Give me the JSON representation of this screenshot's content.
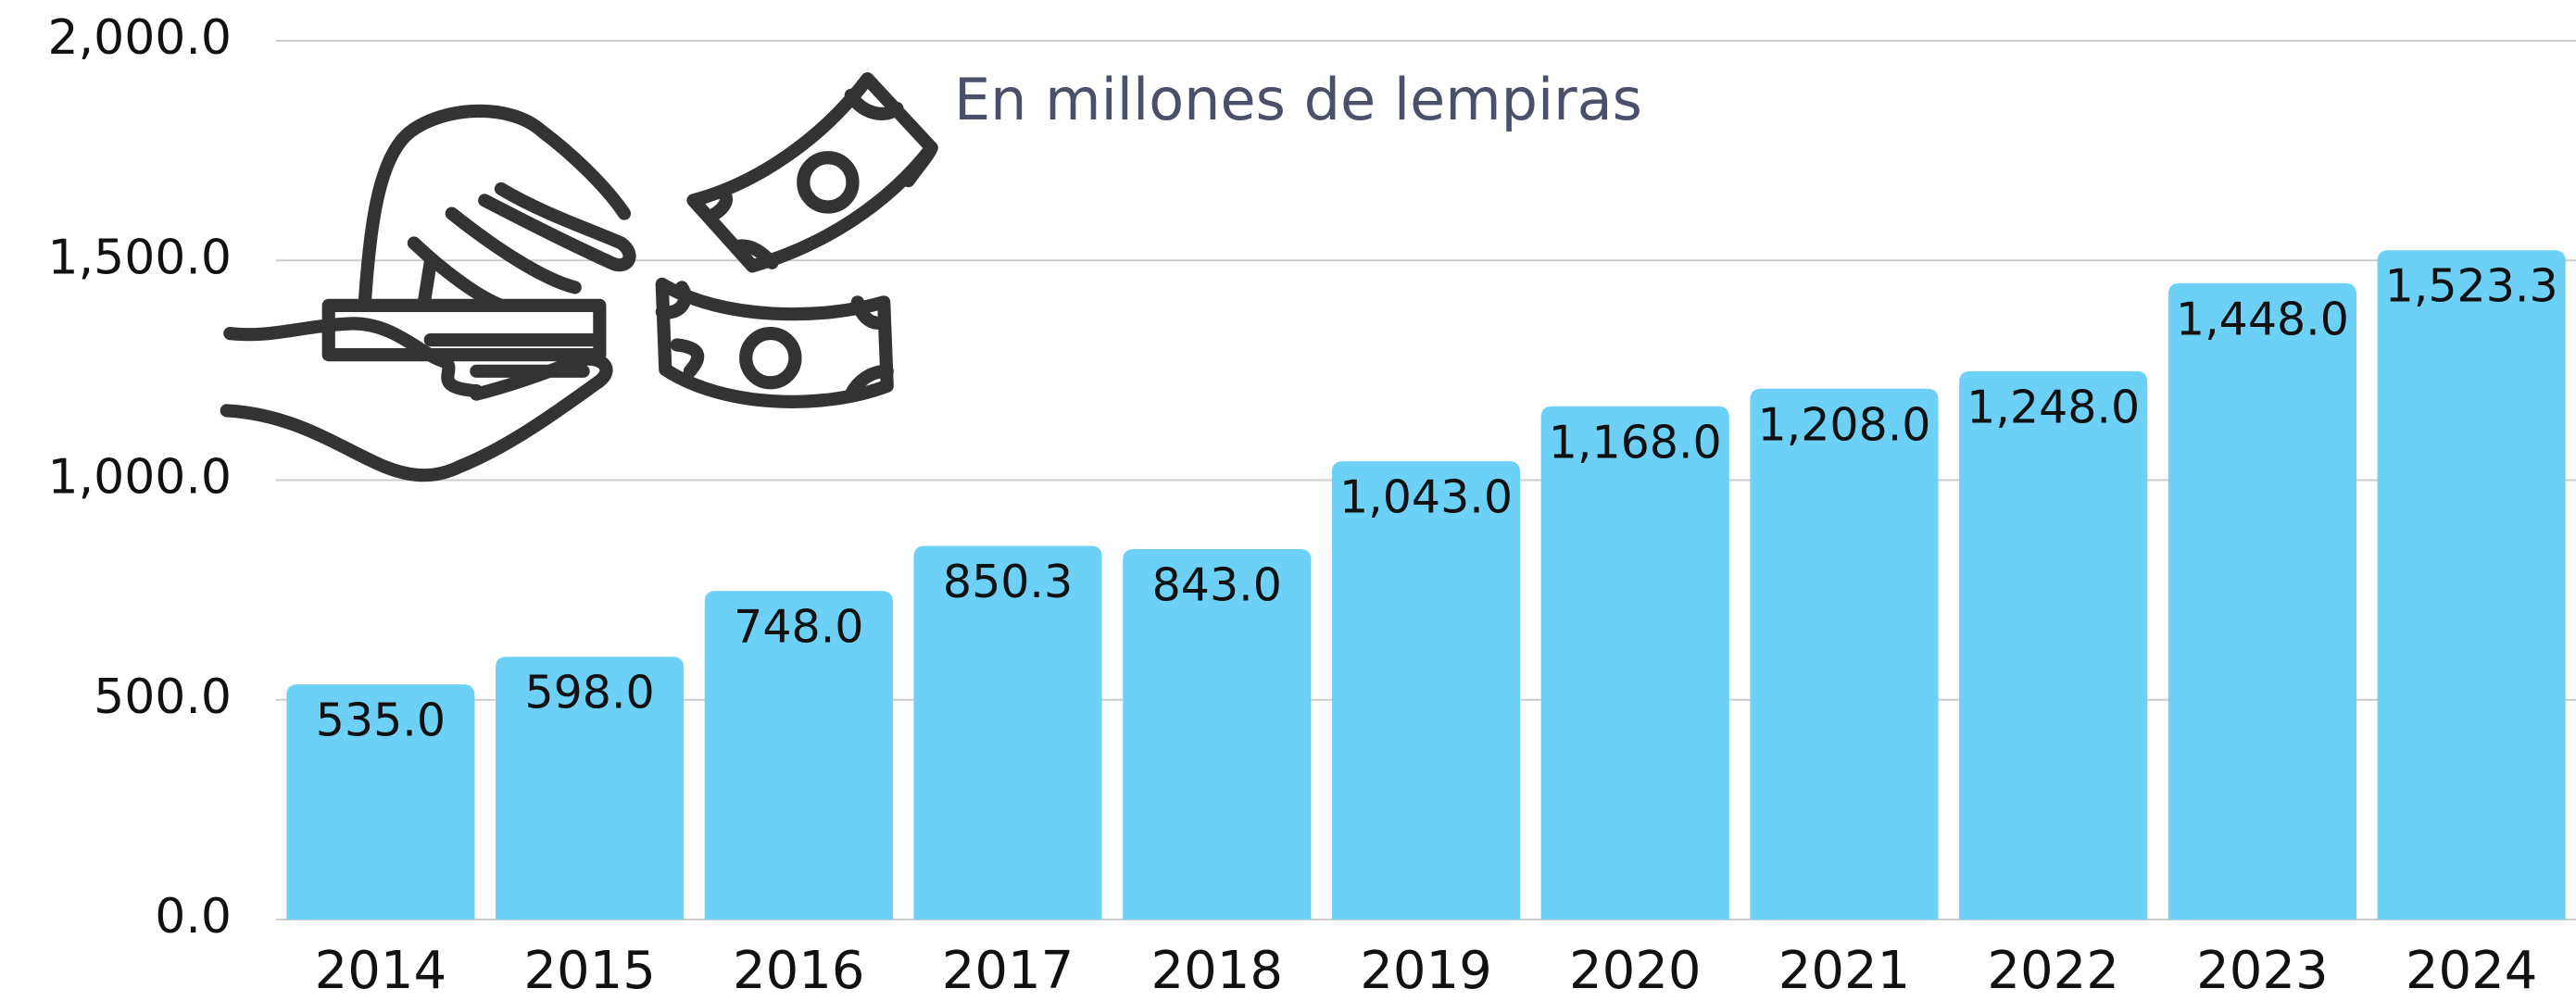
{
  "chart_data": {
    "type": "bar",
    "subtitle": "En millones de lempiras",
    "categories": [
      "2014",
      "2015",
      "2016",
      "2017",
      "2018",
      "2019",
      "2020",
      "2021",
      "2022",
      "2023",
      "2024"
    ],
    "values": [
      535.0,
      598.0,
      748.0,
      850.3,
      843.0,
      1043.0,
      1168.0,
      1208.0,
      1248.0,
      1448.0,
      1523.3
    ],
    "value_labels": [
      "535.0",
      "598.0",
      "748.0",
      "850.3",
      "843.0",
      "1,043.0",
      "1,168.0",
      "1,208.0",
      "1,248.0",
      "1,448.0",
      "1,523.3"
    ],
    "color": "#6dd0f7",
    "ylim": [
      0,
      2000
    ],
    "yticks": [
      {
        "value": 0,
        "label": "0.0"
      },
      {
        "value": 500,
        "label": "500.0"
      },
      {
        "value": 1000,
        "label": "1,000.0"
      },
      {
        "value": 1500,
        "label": "1,500.0"
      },
      {
        "value": 2000,
        "label": "2,000.0"
      }
    ],
    "grid": true
  }
}
